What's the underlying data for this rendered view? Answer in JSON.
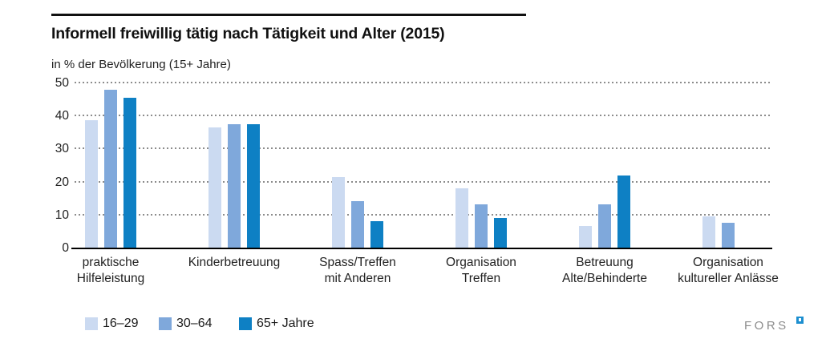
{
  "page": {
    "title": "Informell freiwillig tätig nach Tätigkeit und Alter (2015)",
    "subtitle": "in % der Bevölkerung (15+ Jahre)",
    "logo_text": "FORS"
  },
  "colors": {
    "series_16_29": "#cbdaf1",
    "series_30_64": "#7fa8db",
    "series_65plus": "#0e80c4",
    "gridline": "#8c8c8c",
    "axis_line": "#000000",
    "text": "#1a1a1a",
    "logo_gray": "#8b8b8b",
    "logo_square_blue": "#1d8fd0"
  },
  "chart_data": {
    "type": "bar",
    "title": "Informell freiwillig tätig nach Tätigkeit und Alter (2015)",
    "subtitle": "in % der Bevölkerung (15+ Jahre)",
    "ylabel": "in % der Bevölkerung (15+ Jahre)",
    "xlabel": "",
    "ylim": [
      0,
      50
    ],
    "yticks": [
      0,
      10,
      20,
      30,
      40,
      50
    ],
    "grid": "horizontal-dotted",
    "legend_position": "bottom-left",
    "categories": [
      "praktische Hilfeleistung",
      "Kinderbetreuung",
      "Spass/Treffen mit Anderen",
      "Organisation Treffen",
      "Betreuung Alte/Behinderte",
      "Organisation kultureller Anlässe"
    ],
    "category_lines": [
      [
        "praktische",
        "Hilfeleistung"
      ],
      [
        "Kinderbetreuung",
        ""
      ],
      [
        "Spass/Treffen",
        "mit Anderen"
      ],
      [
        "Organisation",
        "Treffen"
      ],
      [
        "Betreuung",
        "Alte/Behinderte"
      ],
      [
        "Organisation",
        "kultureller Anlässe"
      ]
    ],
    "series": [
      {
        "name": "16–29",
        "color": "#cbdaf1",
        "values": [
          38.6,
          36.3,
          21.4,
          18.0,
          6.6,
          9.5
        ]
      },
      {
        "name": "30–64",
        "color": "#7fa8db",
        "values": [
          47.9,
          37.3,
          14.0,
          13.0,
          13.0,
          7.6
        ]
      },
      {
        "name": "65+ Jahre",
        "color": "#0e80c4",
        "values": [
          45.5,
          37.3,
          8.1,
          9.0,
          21.9,
          null
        ]
      }
    ]
  },
  "layout_hints": {
    "legend_item_x": [
      106,
      198,
      298
    ]
  }
}
